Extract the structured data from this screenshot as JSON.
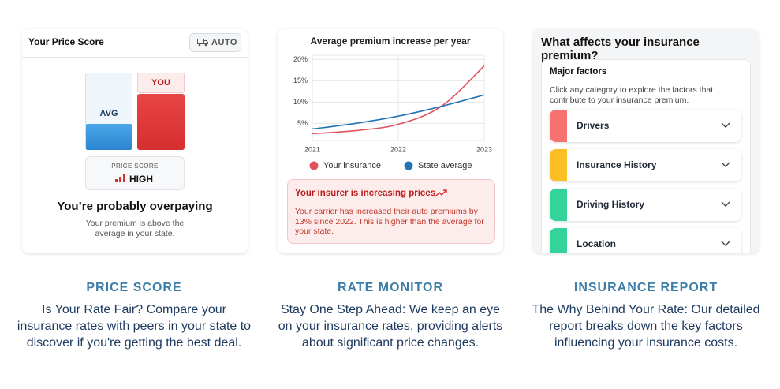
{
  "cards": [
    {
      "header_title": "Your Price Score",
      "badge": "AUTO",
      "avg_label": "AVG",
      "you_label": "YOU",
      "score_caption": "PRICE SCORE",
      "score_value": "HIGH",
      "headline": "You’re probably overpaying",
      "description": "Your premium is above the average in your state."
    },
    {
      "chart_data": {
        "type": "line",
        "title": "Average premium increase per year",
        "x": [
          2021,
          2021.5,
          2022,
          2022.5,
          2023
        ],
        "series": [
          {
            "name": "Your insurance",
            "color": "#e0525e",
            "values": [
              2.6,
              3.3,
              4.8,
              9,
              18.5
            ]
          },
          {
            "name": "State average",
            "color": "#2272b4",
            "values": [
              3.7,
              5.0,
              6.7,
              9,
              11.7
            ]
          }
        ],
        "xlim": [
          2021,
          2023
        ],
        "xticks": [
          2021,
          2022,
          2023
        ],
        "ylim": [
          1,
          21
        ],
        "yticks": [
          {
            "value": 5,
            "label": "5%"
          },
          {
            "value": 10,
            "label": "10%"
          },
          {
            "value": 15,
            "label": "15%"
          },
          {
            "value": 20,
            "label": "20%"
          }
        ],
        "grid": true
      },
      "alert_title": "Your insurer is increasing prices",
      "alert_text": "Your carrier has increased their auto premiums by 13% since 2022. This is higher than the average for your state."
    },
    {
      "title": "What affects your insurance premium?",
      "section_title": "Major factors",
      "section_text": "Click any category to explore the factors that contribute to your insurance premium.",
      "factors": [
        "Drivers",
        "Insurance History",
        "Driving History",
        "Location"
      ]
    }
  ],
  "features": [
    {
      "title": "PRICE SCORE",
      "text": "Is Your Rate Fair? Compare your insurance rates with peers in your state to discover if you're getting the best deal."
    },
    {
      "title": "RATE MONITOR",
      "text": "Stay One Step Ahead: We keep an eye on your insurance rates, providing alerts about significant price changes."
    },
    {
      "title": "INSURANCE REPORT",
      "text": "The Why Behind Your Rate: Our detailed report breaks down the key factors influencing your insurance costs."
    }
  ]
}
